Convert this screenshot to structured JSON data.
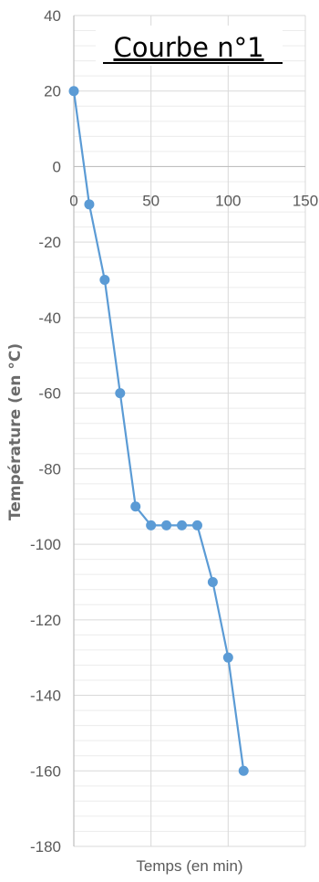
{
  "chart_data": {
    "type": "scatter",
    "title": "Courbe n°1",
    "xlabel": "Temps (en min)",
    "ylabel": "Température (en °C)",
    "xlim": [
      0,
      150
    ],
    "ylim": [
      -180,
      40
    ],
    "x_ticks": [
      0,
      50,
      100,
      150
    ],
    "x_tick_labels": [
      "0",
      "50",
      "100",
      "150"
    ],
    "y_ticks": [
      40,
      20,
      0,
      -20,
      -40,
      -60,
      -80,
      -100,
      -120,
      -140,
      -160,
      -180
    ],
    "y_tick_labels": [
      "40",
      "20",
      "0",
      "-20",
      "-40",
      "-60",
      "-80",
      "-100",
      "-120",
      "-140",
      "-160",
      "-180"
    ],
    "grid": true,
    "lines_connected": true,
    "series": [
      {
        "x": [
          0,
          10,
          20,
          30,
          40,
          50,
          60,
          70,
          80,
          90,
          100,
          110
        ],
        "y": [
          20,
          -10,
          -30,
          -60,
          -90,
          -95,
          -95,
          -95,
          -95,
          -110,
          -130,
          -160
        ]
      }
    ],
    "colors": {
      "series": "#5b9bd5",
      "grid_major": "#d9d9d9",
      "grid_minor": "#ececec",
      "tick_text": "#5a5a5a",
      "title_text": "#000000"
    }
  }
}
